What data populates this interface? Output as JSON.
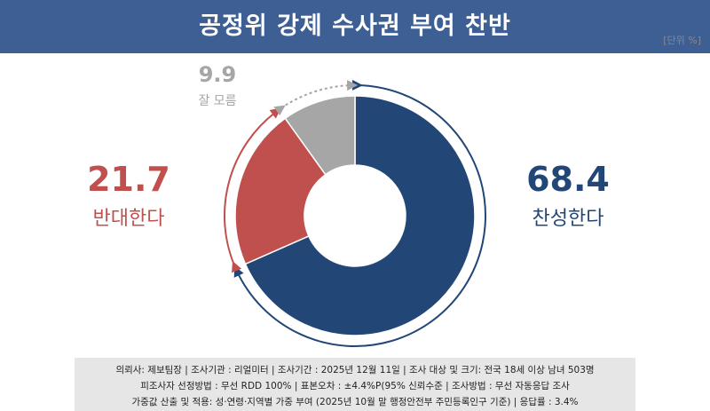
{
  "header": {
    "title": "공정위 강제 수사권 부여 찬반",
    "unit": "[단위 %]"
  },
  "chart_data": {
    "type": "pie",
    "title": "공정위 강제 수사권 부여 찬반",
    "slices": [
      {
        "label": "찬성한다",
        "value": 68.4,
        "value_label": "68.4",
        "color": "#224777"
      },
      {
        "label": "반대한다",
        "value": 21.7,
        "value_label": "21.7",
        "color": "#c0504d"
      },
      {
        "label": "잘 모름",
        "value": 9.9,
        "value_label": "9.9",
        "color": "#a6a6a6"
      }
    ]
  },
  "footer": {
    "line1": "의뢰사: 제보팀장 | 조사기관 : 리얼미터 | 조사기간 : 2025년 12월 11일 | 조사 대상 및 크기: 전국 18세 이상 남녀 503명",
    "line2": "피조사자 선정방법 : 무선 RDD 100% | 표본오차 : ±4.4%P(95% 신뢰수준 | 조사방법 : 무선 자동응답 조사",
    "line3": "가중값 산출 및 적용: 성·연령·지역별 가중 부여 (2025년 10월 말 행정안전부 주민등록인구 기준) | 응답률 : 3.4%"
  }
}
